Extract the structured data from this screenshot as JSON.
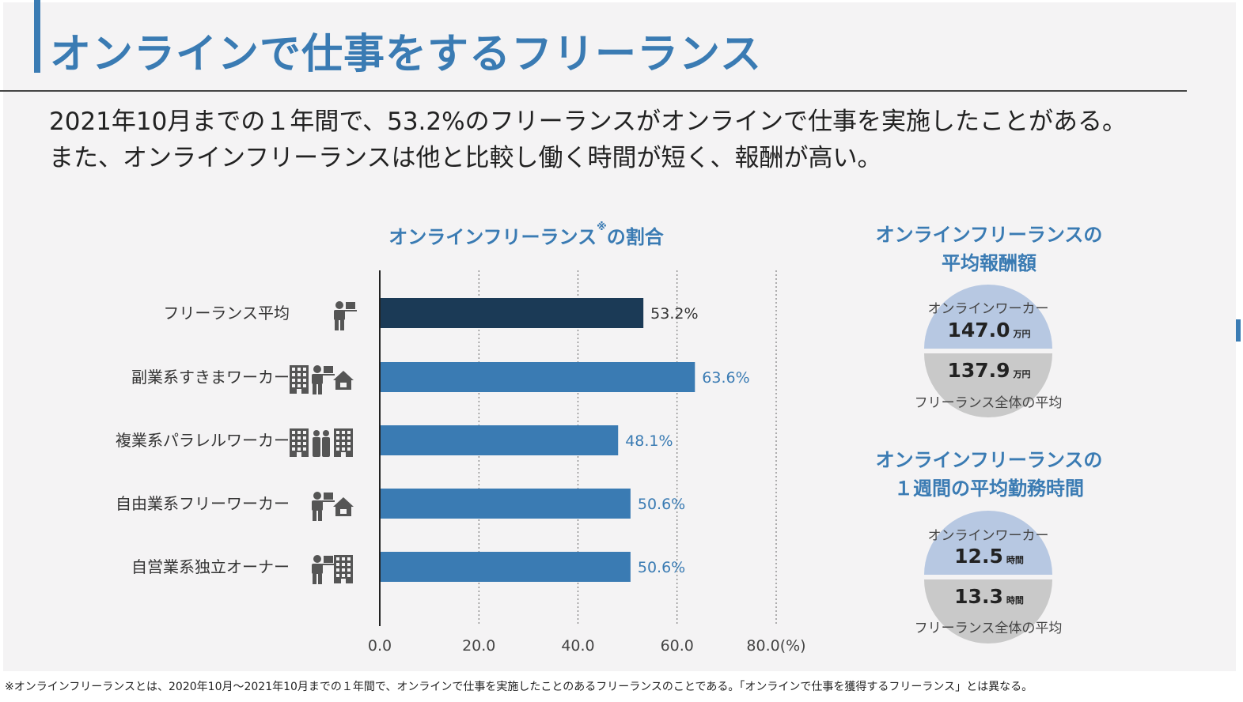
{
  "title": "オンラインで仕事をするフリーランス",
  "lead": {
    "line1": "2021年10月までの１年間で、53.2%のフリーランスがオンラインで仕事を実施したことがある。",
    "line2": "また、オンラインフリーランスは他と比較し働く時間が短く、報酬が高い。"
  },
  "chart": {
    "title": "オンラインフリーランス",
    "title_note": "※",
    "title_suffix": "の割合"
  },
  "chart_data": {
    "type": "bar",
    "orientation": "horizontal",
    "categories": [
      "フリーランス平均",
      "副業系すきまワーカー",
      "複業系パラレルワーカー",
      "自由業系フリーワーカー",
      "自営業系独立オーナー"
    ],
    "values": [
      53.2,
      63.6,
      48.1,
      50.6,
      50.6
    ],
    "value_labels": [
      "53.2%",
      "63.6%",
      "48.1%",
      "50.6%",
      "50.6%"
    ],
    "tick_labels": [
      "0.0",
      "20.0",
      "40.0",
      "60.0",
      "80.0(%)"
    ],
    "xlim": [
      0,
      80
    ],
    "grid": true,
    "colors": {
      "highlight": "#1b3a56",
      "bar": "#3a7bb3",
      "highlight_label": "#333333",
      "bar_label": "#3a7bb3"
    },
    "category_icons": [
      [
        "person-laptop-icon"
      ],
      [
        "building-icon",
        "person-laptop-icon",
        "house-icon"
      ],
      [
        "building-icon",
        "people-icon",
        "building-icon"
      ],
      [
        "person-laptop-icon",
        "house-icon"
      ],
      [
        "person-laptop-icon",
        "building-icon"
      ]
    ]
  },
  "reward": {
    "title_line1": "オンラインフリーランスの",
    "title_line2": "平均報酬額",
    "online_label": "オンラインワーカー",
    "online_value": "147.0",
    "online_unit": "万円",
    "all_value": "137.9",
    "all_unit": "万円",
    "all_label": "フリーランス全体の平均"
  },
  "hours": {
    "title_line1": "オンラインフリーランスの",
    "title_line2": "１週間の平均勤務時間",
    "online_label": "オンラインワーカー",
    "online_value": "12.5",
    "online_unit": "時間",
    "all_value": "13.3",
    "all_unit": "時間",
    "all_label": "フリーランス全体の平均"
  },
  "footnote": "※オンラインフリーランスとは、2020年10月～2021年10月までの１年間で、オンラインで仕事を実施したことのあるフリーランスのことである。「オンラインで仕事を獲得するフリーランス」とは異なる。"
}
